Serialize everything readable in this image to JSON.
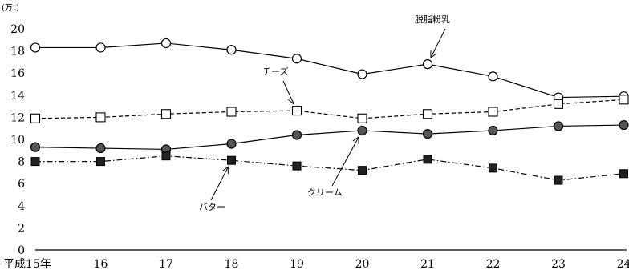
{
  "chart_data": {
    "type": "line",
    "title": "",
    "xlabel": "",
    "ylabel": "",
    "unit_label": "(万t)",
    "categories": [
      "平成15年",
      "16",
      "17",
      "18",
      "19",
      "20",
      "21",
      "22",
      "23",
      "24"
    ],
    "ylim": [
      0,
      20
    ],
    "yticks": [
      0,
      2,
      4,
      6,
      8,
      10,
      12,
      14,
      16,
      18,
      20
    ],
    "grid": false,
    "legend": "none",
    "series": [
      {
        "name": "脱脂粉乳",
        "values": [
          18.3,
          18.3,
          18.7,
          18.1,
          17.3,
          15.9,
          16.8,
          15.7,
          13.8,
          13.9
        ],
        "marker": "open-circle",
        "line": "solid",
        "label_on": 6
      },
      {
        "name": "チーズ",
        "values": [
          11.9,
          12.0,
          12.3,
          12.5,
          12.6,
          11.9,
          12.3,
          12.5,
          13.2,
          13.6
        ],
        "marker": "open-square",
        "line": "dashed",
        "label_on": 4
      },
      {
        "name": "クリーム",
        "values": [
          9.3,
          9.2,
          9.1,
          9.6,
          10.4,
          10.8,
          10.5,
          10.8,
          11.2,
          11.3
        ],
        "marker": "filled-circle",
        "line": "solid",
        "label_on": 5
      },
      {
        "name": "バター",
        "values": [
          8.0,
          8.0,
          8.5,
          8.1,
          7.6,
          7.2,
          8.2,
          7.4,
          6.3,
          6.9
        ],
        "marker": "filled-square",
        "line": "dash-dot",
        "label_on": 3
      }
    ]
  }
}
